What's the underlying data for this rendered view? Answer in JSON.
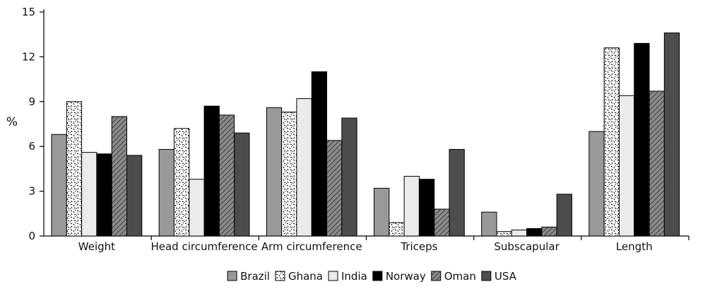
{
  "chart_data": {
    "type": "bar",
    "title": "",
    "xlabel": "",
    "ylabel": "%",
    "ylim": [
      0,
      15
    ],
    "yticks": [
      0,
      3,
      6,
      9,
      12,
      15
    ],
    "grid": false,
    "legend_position": "bottom",
    "categories": [
      "Weight",
      "Head circumference",
      "Arm circumference",
      "Triceps",
      "Subscapular",
      "Length"
    ],
    "series": [
      {
        "name": "Brazil",
        "values": [
          6.8,
          5.8,
          8.6,
          3.2,
          1.6,
          7.0
        ],
        "color": "#999999",
        "pattern": "solid"
      },
      {
        "name": "Ghana",
        "values": [
          9.0,
          7.2,
          8.3,
          0.9,
          0.3,
          12.6
        ],
        "color": "#ffffff",
        "pattern": "speckle"
      },
      {
        "name": "India",
        "values": [
          5.6,
          3.8,
          9.2,
          4.0,
          0.4,
          9.4
        ],
        "color": "#ebebeb",
        "pattern": "solid"
      },
      {
        "name": "Norway",
        "values": [
          5.5,
          8.7,
          11.0,
          3.8,
          0.5,
          12.9
        ],
        "color": "#000000",
        "pattern": "solid"
      },
      {
        "name": "Oman",
        "values": [
          8.0,
          8.1,
          6.4,
          1.8,
          0.6,
          9.7
        ],
        "color": "#7a7a7a",
        "pattern": "hatch"
      },
      {
        "name": "USA",
        "values": [
          5.4,
          6.9,
          7.9,
          5.8,
          2.8,
          13.6
        ],
        "color": "#4d4d4d",
        "pattern": "solid"
      }
    ]
  }
}
